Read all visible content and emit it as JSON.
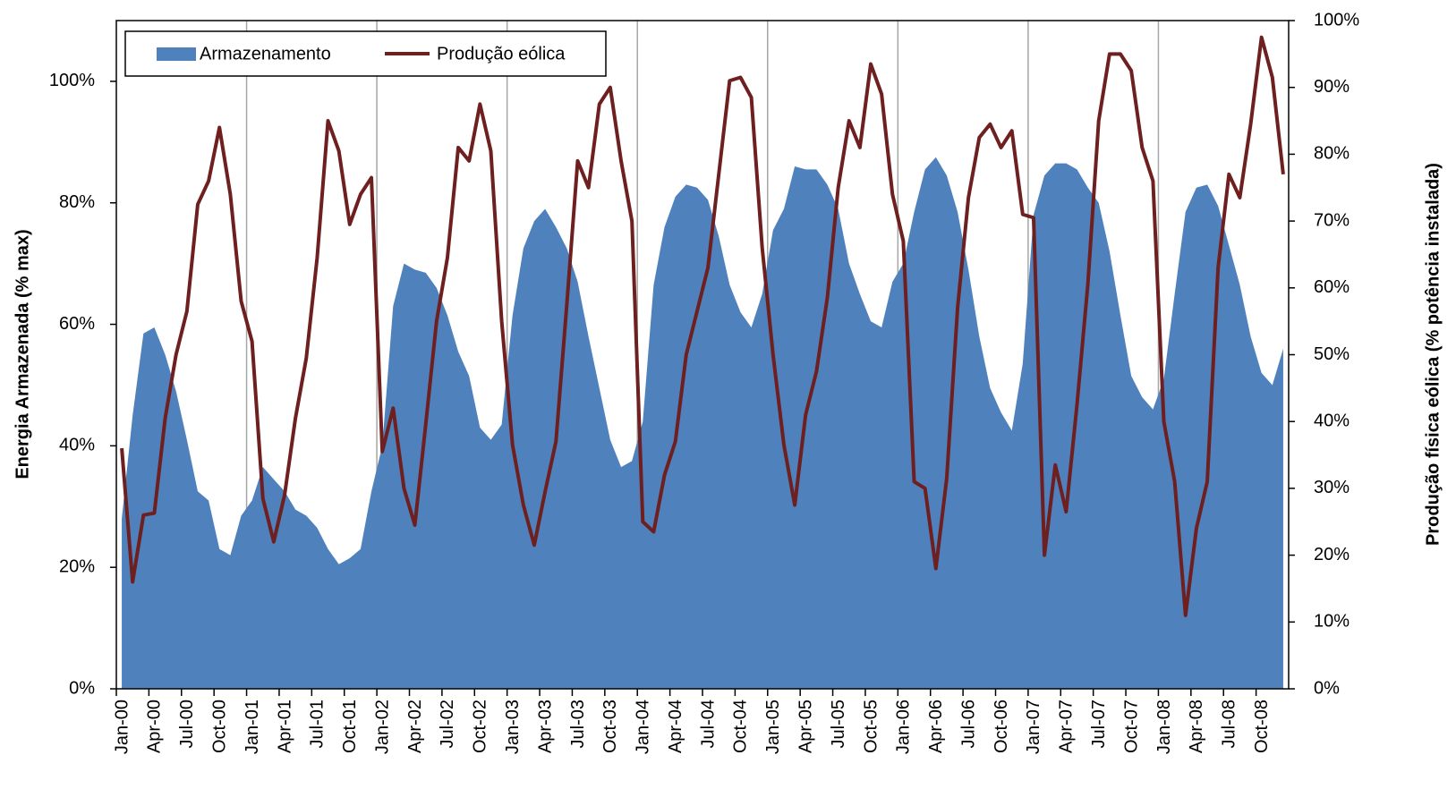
{
  "chart_data": {
    "type": "area_line",
    "y_label": "Energia Armazenada (% max)",
    "y2_label": "Produção física eólica (% potência instalada)",
    "categories": [
      "Jan-00",
      null,
      null,
      "Apr-00",
      null,
      null,
      "Jul-00",
      null,
      null,
      "Oct-00",
      null,
      null,
      "Jan-01",
      null,
      null,
      "Apr-01",
      null,
      null,
      "Jul-01",
      null,
      null,
      "Oct-01",
      null,
      null,
      "Jan-02",
      null,
      null,
      "Apr-02",
      null,
      null,
      "Jul-02",
      null,
      null,
      "Oct-02",
      null,
      null,
      "Jan-03",
      null,
      null,
      "Apr-03",
      null,
      null,
      "Jul-03",
      null,
      null,
      "Oct-03",
      null,
      null,
      "Jan-04",
      null,
      null,
      "Apr-04",
      null,
      null,
      "Jul-04",
      null,
      null,
      "Oct-04",
      null,
      null,
      "Jan-05",
      null,
      null,
      "Apr-05",
      null,
      null,
      "Jul-05",
      null,
      null,
      "Oct-05",
      null,
      null,
      "Jan-06",
      null,
      null,
      "Apr-06",
      null,
      null,
      "Jul-06",
      null,
      null,
      "Oct-06",
      null,
      null,
      "Jan-07",
      null,
      null,
      "Apr-07",
      null,
      null,
      "Jul-07",
      null,
      null,
      "Oct-07",
      null,
      null,
      "Jan-08",
      null,
      null,
      "Apr-08",
      null,
      null,
      "Jul-08",
      null,
      null,
      "Oct-08",
      null,
      null
    ],
    "series": [
      {
        "name": "Armazenamento",
        "kind": "area",
        "axis": "y",
        "color": "#4f81bd",
        "values": [
          28,
          45,
          58.5,
          59.5,
          55,
          49,
          41,
          32.5,
          31,
          23,
          22,
          28.5,
          31,
          36.5,
          34.5,
          32.5,
          29.5,
          28.5,
          26.5,
          23,
          20.5,
          21.5,
          23,
          32.5,
          40,
          63,
          70,
          69,
          68.5,
          66,
          61.5,
          55.5,
          51.5,
          43,
          41,
          43.5,
          61.5,
          72.5,
          77,
          79,
          76,
          72.5,
          67,
          58,
          49.5,
          41,
          36.5,
          37.5,
          44,
          66.5,
          76,
          81,
          83,
          82.5,
          80.5,
          74.5,
          66.5,
          62,
          59.5,
          65,
          75.5,
          79,
          86,
          85.5,
          85.5,
          83,
          79,
          70,
          65,
          60.5,
          59.5,
          67,
          70,
          78.5,
          85.5,
          87.5,
          84.5,
          78.5,
          69,
          58,
          49.5,
          45.5,
          42.5,
          53.5,
          78,
          84.5,
          86.5,
          86.5,
          85.5,
          82.5,
          80,
          72,
          61.5,
          51.5,
          48,
          46,
          51,
          65,
          78.5,
          82.5,
          83,
          79.5,
          73,
          66.5,
          58,
          52,
          50,
          56
        ]
      },
      {
        "name": "Produção eólica",
        "kind": "line",
        "axis": "y2",
        "color": "#6e1f1f",
        "values": [
          36,
          16,
          26,
          26.3,
          40.5,
          50,
          56.5,
          72.5,
          76,
          84,
          74,
          58,
          52,
          28.5,
          22,
          29,
          40.5,
          49.5,
          64.5,
          85,
          80.5,
          69.5,
          74,
          76.5,
          35.5,
          42,
          30,
          24.5,
          39.5,
          55,
          64.5,
          81,
          79,
          87.5,
          80.5,
          55,
          36.5,
          27.5,
          21.5,
          29.5,
          37,
          57.5,
          79,
          75,
          87.5,
          90,
          79,
          70,
          25,
          23.5,
          32,
          37,
          50,
          56.5,
          63,
          77,
          91,
          91.5,
          88.5,
          66,
          50,
          36.5,
          27.5,
          41,
          47.5,
          58.5,
          75,
          85,
          81,
          93.5,
          89,
          74,
          67,
          31,
          30,
          18,
          31.5,
          57,
          73.5,
          82.5,
          84.5,
          81,
          83.5,
          71,
          70.5,
          20,
          33.5,
          26.5,
          42.5,
          60.5,
          85,
          95,
          95,
          92.5,
          81,
          76,
          40,
          31,
          11,
          24,
          31,
          63,
          77,
          73.5,
          84.5,
          97.5,
          91.5,
          77
        ]
      }
    ],
    "ylim": [
      0,
      110
    ],
    "yticks": [
      {
        "value": 0,
        "label": "0%"
      },
      {
        "value": 20,
        "label": "20%"
      },
      {
        "value": 40,
        "label": "40%"
      },
      {
        "value": 60,
        "label": "60%"
      },
      {
        "value": 80,
        "label": "80%"
      },
      {
        "value": 100,
        "label": "100%"
      }
    ],
    "y2lim": [
      0,
      100
    ],
    "y2ticks": [
      {
        "value": 0,
        "label": "0%"
      },
      {
        "value": 10,
        "label": "10%"
      },
      {
        "value": 20,
        "label": "20%"
      },
      {
        "value": 30,
        "label": "30%"
      },
      {
        "value": 40,
        "label": "40%"
      },
      {
        "value": 50,
        "label": "50%"
      },
      {
        "value": 60,
        "label": "60%"
      },
      {
        "value": 70,
        "label": "70%"
      },
      {
        "value": 80,
        "label": "80%"
      },
      {
        "value": 90,
        "label": "90%"
      },
      {
        "value": 100,
        "label": "100%"
      }
    ],
    "xgrid_every": 12,
    "legend": "top-left"
  }
}
